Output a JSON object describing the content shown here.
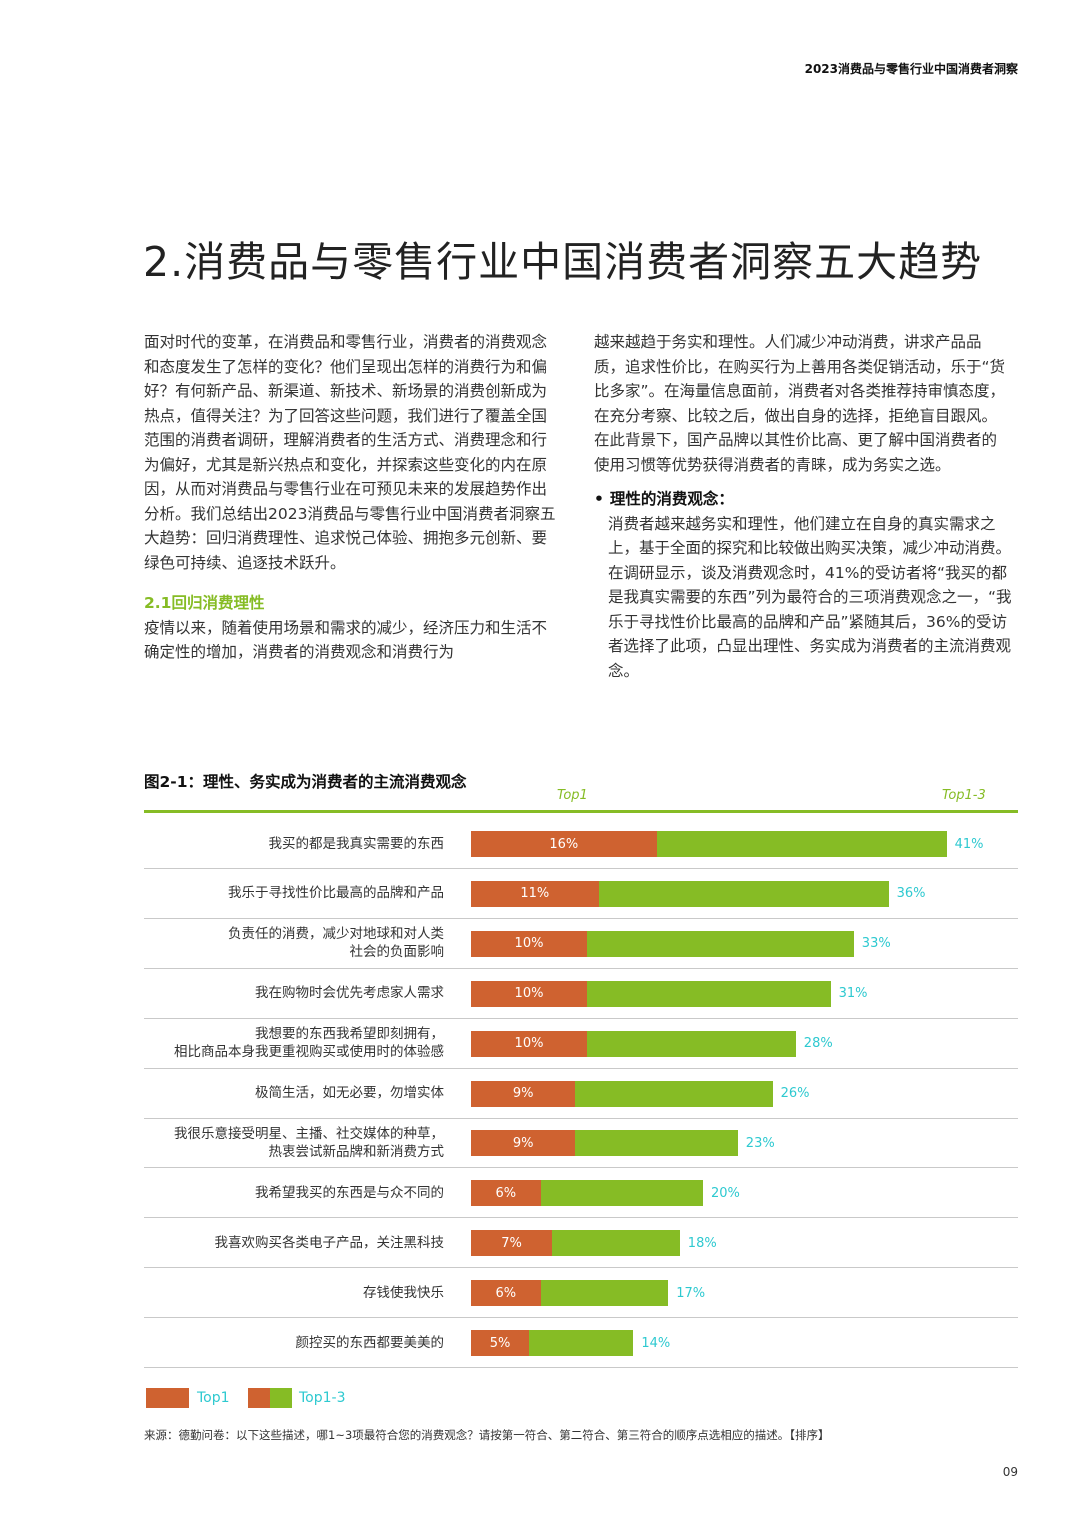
{
  "header": {
    "report_title": "2023消费品与零售行业中国消费者洞察"
  },
  "title": "2.消费品与零售行业中国消费者洞察五大趋势",
  "body_left": {
    "intro": "面对时代的变革，在消费品和零售行业，消费者的消费观念和态度发生了怎样的变化？他们呈现出怎样的消费行为和偏好？有何新产品、新渠道、新技术、新场景的消费创新成为热点，值得关注？为了回答这些问题，我们进行了覆盖全国范围的消费者调研，理解消费者的生活方式、消费理念和行为偏好，尤其是新兴热点和变化，并探索这些变化的内在原因，从而对消费品与零售行业在可预见未来的发展趋势作出分析。我们总结出2023消费品与零售行业中国消费者洞察五大趋势：回归消费理性、追求悦己体验、拥抱多元创新、要绿色可持续、追逐技术跃升。",
    "subheading": "2.1回归消费理性",
    "section_text": "疫情以来，随着使用场景和需求的减少，经济压力和生活不确定性的增加，消费者的消费观念和消费行为"
  },
  "body_right": {
    "continuation": "越来越趋于务实和理性。人们减少冲动消费，讲求产品品质，追求性价比，在购买行为上善用各类促销活动，乐于“货比多家”。在海量信息面前，消费者对各类推荐持审慎态度，在充分考察、比较之后，做出自身的选择，拒绝盲目跟风。在此背景下，国产品牌以其性价比高、更了解中国消费者的使用习惯等优势获得消费者的青睐，成为务实之选。",
    "bullet_title": "理性的消费观念：",
    "bullet_text": "消费者越来越务实和理性，他们建立在自身的真实需求之上，基于全面的探究和比较做出购买决策，减少冲动消费。在调研显示，谈及消费观念时，41%的受访者将“我买的都是我真实需要的东西”列为最符合的三项消费观念之一，“我乐于寻找性价比最高的品牌和产品”紧随其后，36%的受访者选择了此项，凸显出理性、务实成为消费者的主流消费观念。"
  },
  "figure": {
    "title": "图2-1：理性、务实成为消费者的主流消费观念",
    "col_top1": "Top1",
    "col_top13": "Top1-3"
  },
  "legend": {
    "top1": "Top1",
    "top13": "Top1-3"
  },
  "source": "来源：德勤问卷：以下这些描述，哪1~3项最符合您的消费观念？请按第一符合、第二符合、第三符合的顺序点选相应的描述。【排序】",
  "page_number": "09",
  "colors": {
    "top1": "#cf6230",
    "top13": "#86bc25",
    "value_label": "#2ec9d0",
    "accent": "#86bc25"
  },
  "chart_data": {
    "type": "bar",
    "orientation": "horizontal",
    "title": "图2-1：理性、务实成为消费者的主流消费观念",
    "unit": "%",
    "categories": [
      "我买的都是我真实需要的东西",
      "我乐于寻找性价比最高的品牌和产品",
      "负责任的消费，减少对地球和对人类\n社会的负面影响",
      "我在购物时会优先考虑家人需求",
      "我想要的东西我希望即刻拥有，\n相比商品本身我更重视购买或使用时的体验感",
      "极简生活，如无必要，勿增实体",
      "我很乐意接受明星、主播、社交媒体的种草，\n热衷尝试新品牌和新消费方式",
      "我希望我买的东西是与众不同的",
      "我喜欢购买各类电子产品，关注黑科技",
      "存钱使我快乐",
      "颜控买的东西都要美美的"
    ],
    "series": [
      {
        "name": "Top1",
        "values": [
          16,
          11,
          10,
          10,
          10,
          9,
          9,
          6,
          7,
          6,
          5
        ]
      },
      {
        "name": "Top1-3",
        "values": [
          41,
          36,
          33,
          31,
          28,
          26,
          23,
          20,
          18,
          17,
          14
        ]
      }
    ],
    "legend": "bottom-left"
  }
}
